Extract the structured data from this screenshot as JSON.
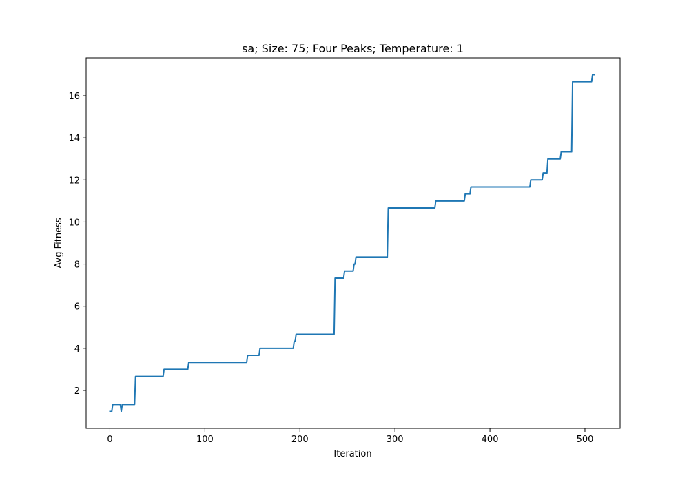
{
  "chart_data": {
    "type": "line",
    "title": "sa; Size: 75; Four Peaks; Temperature: 1",
    "xlabel": "Iteration",
    "ylabel": "Avg Fitness",
    "xlim": [
      -25,
      537
    ],
    "ylim": [
      0.2,
      17.8
    ],
    "xticks": [
      0,
      100,
      200,
      300,
      400,
      500
    ],
    "yticks": [
      2,
      4,
      6,
      8,
      10,
      12,
      14,
      16
    ],
    "grid": false,
    "line_color": "#1f77b4",
    "series": [
      {
        "name": "Avg Fitness",
        "x": [
          0,
          2,
          3,
          10,
          11,
          12,
          13,
          26,
          27,
          56,
          57,
          82,
          83,
          144,
          145,
          157,
          158,
          193,
          194,
          195,
          196,
          236,
          237,
          246,
          247,
          256,
          257,
          258,
          259,
          292,
          293,
          342,
          343,
          373,
          374,
          379,
          380,
          442,
          443,
          455,
          456,
          460,
          461,
          474,
          475,
          486,
          487,
          507,
          508,
          510
        ],
        "y": [
          1.0,
          1.0,
          1.333,
          1.333,
          1.333,
          1.0,
          1.333,
          1.333,
          2.667,
          2.667,
          3.0,
          3.0,
          3.333,
          3.333,
          3.667,
          3.667,
          4.0,
          4.0,
          4.333,
          4.333,
          4.667,
          4.667,
          7.333,
          7.333,
          7.667,
          7.667,
          8.0,
          8.0,
          8.333,
          8.333,
          10.667,
          10.667,
          11.0,
          11.0,
          11.333,
          11.333,
          11.667,
          11.667,
          12.0,
          12.0,
          12.333,
          12.333,
          13.0,
          13.0,
          13.333,
          13.333,
          16.667,
          16.667,
          17.0,
          17.0
        ]
      }
    ]
  }
}
